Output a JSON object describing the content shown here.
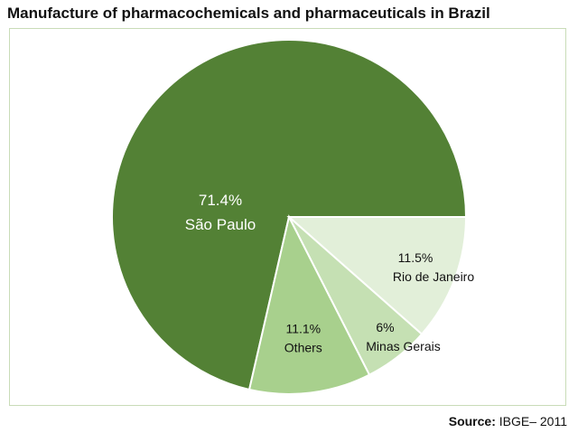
{
  "chart_data": {
    "type": "pie",
    "title": "Manufacture of pharmacochemicals and pharmaceuticals in Brazil",
    "slices": [
      {
        "label": "São Paulo",
        "value_label": "71.4%",
        "value": 71.4,
        "color": "#538135"
      },
      {
        "label": "Rio de Janeiro",
        "value_label": "11.5%",
        "value": 11.5,
        "color": "#e2efd9"
      },
      {
        "label": "Minas Gerais",
        "value_label": "6%",
        "value": 6.0,
        "color": "#c5e0b3"
      },
      {
        "label": "Others",
        "value_label": "11.1%",
        "value": 11.1,
        "color": "#a8d08d"
      }
    ]
  },
  "source": {
    "label": "Source:",
    "text": "IBGE– 2011"
  }
}
